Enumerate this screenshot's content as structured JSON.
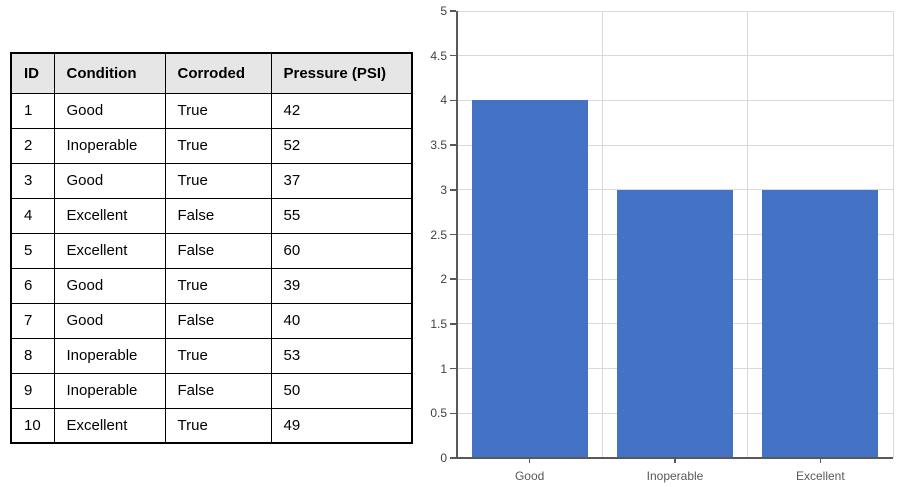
{
  "table": {
    "headers": [
      "ID",
      "Condition",
      "Corroded",
      "Pressure (PSI)"
    ],
    "rows": [
      [
        "1",
        "Good",
        "True",
        "42"
      ],
      [
        "2",
        "Inoperable",
        "True",
        "52"
      ],
      [
        "3",
        "Good",
        "True",
        "37"
      ],
      [
        "4",
        "Excellent",
        "False",
        "55"
      ],
      [
        "5",
        "Excellent",
        "False",
        "60"
      ],
      [
        "6",
        "Good",
        "True",
        "39"
      ],
      [
        "7",
        "Good",
        "False",
        "40"
      ],
      [
        "8",
        "Inoperable",
        "True",
        "53"
      ],
      [
        "9",
        "Inoperable",
        "False",
        "50"
      ],
      [
        "10",
        "Excellent",
        "True",
        "49"
      ]
    ]
  },
  "chart_data": {
    "type": "bar",
    "categories": [
      "Good",
      "Inoperable",
      "Excellent"
    ],
    "values": [
      4,
      3,
      3
    ],
    "title": "",
    "xlabel": "",
    "ylabel": "",
    "ylim": [
      0,
      5
    ],
    "ytick_step": 0.5,
    "grid": true,
    "legend": false,
    "bar_color": "#4472c4",
    "gridline_color": "#d9d9d9",
    "axis_color": "#595959",
    "ytick_label_color": "#404040",
    "xcat_label_color": "#595959"
  }
}
